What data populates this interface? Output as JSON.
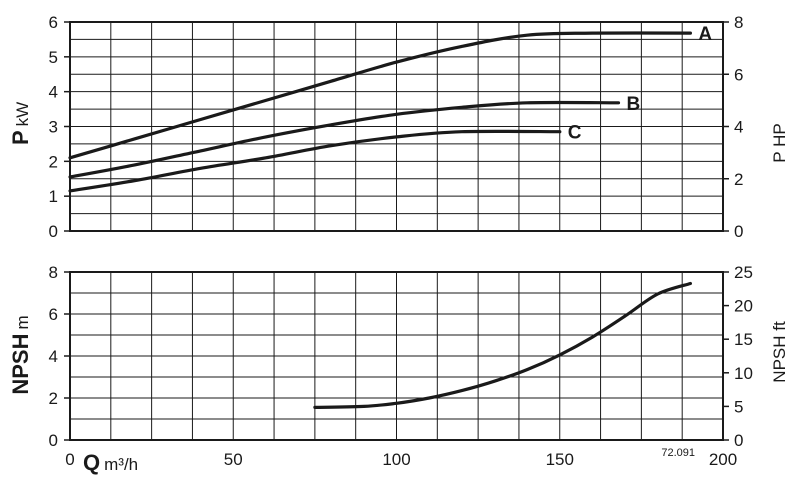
{
  "chart_data": [
    {
      "type": "line",
      "panel": "power",
      "x_range": [
        0,
        200
      ],
      "ylim": [
        0,
        6
      ],
      "y2lim": [
        0,
        8
      ],
      "yticks": [
        0,
        1,
        2,
        3,
        4,
        5,
        6
      ],
      "y2ticks": [
        0,
        2,
        4,
        6,
        8
      ],
      "ylabel": {
        "main": "P",
        "unit": "kW"
      },
      "y2label": "P HP",
      "grid": true,
      "series": [
        {
          "name": "A",
          "points": [
            [
              0,
              2.1
            ],
            [
              20,
              2.65
            ],
            [
              40,
              3.2
            ],
            [
              60,
              3.75
            ],
            [
              80,
              4.3
            ],
            [
              100,
              4.85
            ],
            [
              120,
              5.3
            ],
            [
              140,
              5.62
            ],
            [
              160,
              5.68
            ],
            [
              190,
              5.68
            ]
          ]
        },
        {
          "name": "B",
          "points": [
            [
              0,
              1.55
            ],
            [
              20,
              1.9
            ],
            [
              40,
              2.3
            ],
            [
              60,
              2.7
            ],
            [
              80,
              3.05
            ],
            [
              100,
              3.35
            ],
            [
              120,
              3.55
            ],
            [
              140,
              3.68
            ],
            [
              168,
              3.68
            ]
          ]
        },
        {
          "name": "C",
          "points": [
            [
              0,
              1.15
            ],
            [
              20,
              1.45
            ],
            [
              40,
              1.8
            ],
            [
              60,
              2.1
            ],
            [
              80,
              2.45
            ],
            [
              100,
              2.7
            ],
            [
              120,
              2.85
            ],
            [
              150,
              2.85
            ]
          ]
        }
      ]
    },
    {
      "type": "line",
      "panel": "npsh",
      "x_range": [
        0,
        200
      ],
      "ylim": [
        0,
        8
      ],
      "y2lim": [
        0,
        25
      ],
      "yticks": [
        0,
        2,
        4,
        6,
        8
      ],
      "y2ticks": [
        0,
        5,
        10,
        15,
        20,
        25
      ],
      "xticks": [
        0,
        50,
        100,
        150,
        200
      ],
      "ylabel": {
        "main": "NPSH",
        "unit": "m"
      },
      "y2label": "NPSH ft",
      "xlabel": {
        "main": "Q",
        "unit": "m³/h"
      },
      "grid": true,
      "series": [
        {
          "name": "NPSH",
          "points": [
            [
              75,
              1.55
            ],
            [
              90,
              1.6
            ],
            [
              100,
              1.75
            ],
            [
              110,
              2.0
            ],
            [
              120,
              2.35
            ],
            [
              130,
              2.8
            ],
            [
              140,
              3.35
            ],
            [
              150,
              4.05
            ],
            [
              160,
              4.9
            ],
            [
              170,
              5.9
            ],
            [
              180,
              6.95
            ],
            [
              190,
              7.45
            ]
          ]
        }
      ]
    }
  ],
  "figure_code": "72.091"
}
